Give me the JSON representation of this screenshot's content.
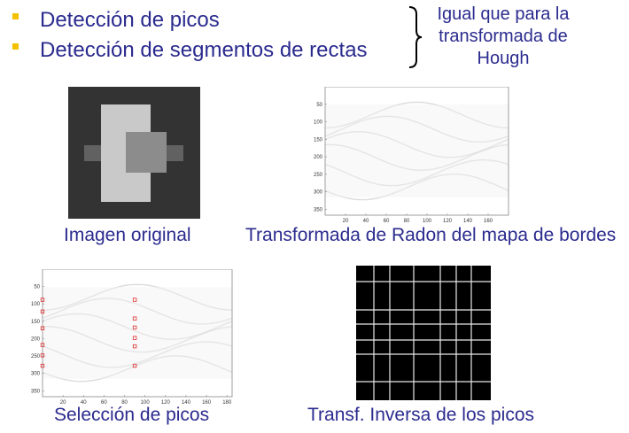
{
  "bullets": [
    {
      "text": "Detección de picos"
    },
    {
      "text": "Detección de segmentos de rectas"
    }
  ],
  "side_note": {
    "lines": [
      "Igual que para la",
      "transformada de",
      "Hough"
    ]
  },
  "panels": {
    "original": {
      "caption": "Imagen original",
      "colors": {
        "background": "#333333",
        "large_rect": "#c9c9c9",
        "center_rect": "#8c8c8c",
        "side_bars": "#616161"
      }
    },
    "radon": {
      "caption": "Transformada de Radon del mapa de bordes",
      "x_ticks": [
        "20",
        "40",
        "60",
        "80",
        "100",
        "120",
        "140",
        "160"
      ],
      "y_ticks": [
        "50",
        "100",
        "150",
        "200",
        "250",
        "300",
        "350"
      ]
    },
    "peaks": {
      "caption": "Selección de picos",
      "x_ticks": [
        "20",
        "40",
        "60",
        "80",
        "100",
        "120",
        "140",
        "160",
        "180"
      ],
      "y_ticks": [
        "50",
        "100",
        "150",
        "200",
        "250",
        "300",
        "350"
      ],
      "marker_color": "#e03030",
      "peak_points": [
        {
          "theta": 0,
          "rho": 88
        },
        {
          "theta": 0,
          "rho": 122
        },
        {
          "theta": 0,
          "rho": 170
        },
        {
          "theta": 0,
          "rho": 218
        },
        {
          "theta": 0,
          "rho": 248
        },
        {
          "theta": 0,
          "rho": 278
        },
        {
          "theta": 90,
          "rho": 88
        },
        {
          "theta": 90,
          "rho": 142
        },
        {
          "theta": 90,
          "rho": 168
        },
        {
          "theta": 90,
          "rho": 198
        },
        {
          "theta": 90,
          "rho": 222
        },
        {
          "theta": 90,
          "rho": 278
        }
      ]
    },
    "inverse": {
      "caption": "Transf. Inversa de los picos",
      "colors": {
        "background": "#000000",
        "lines": "#e8e8e8"
      }
    }
  }
}
